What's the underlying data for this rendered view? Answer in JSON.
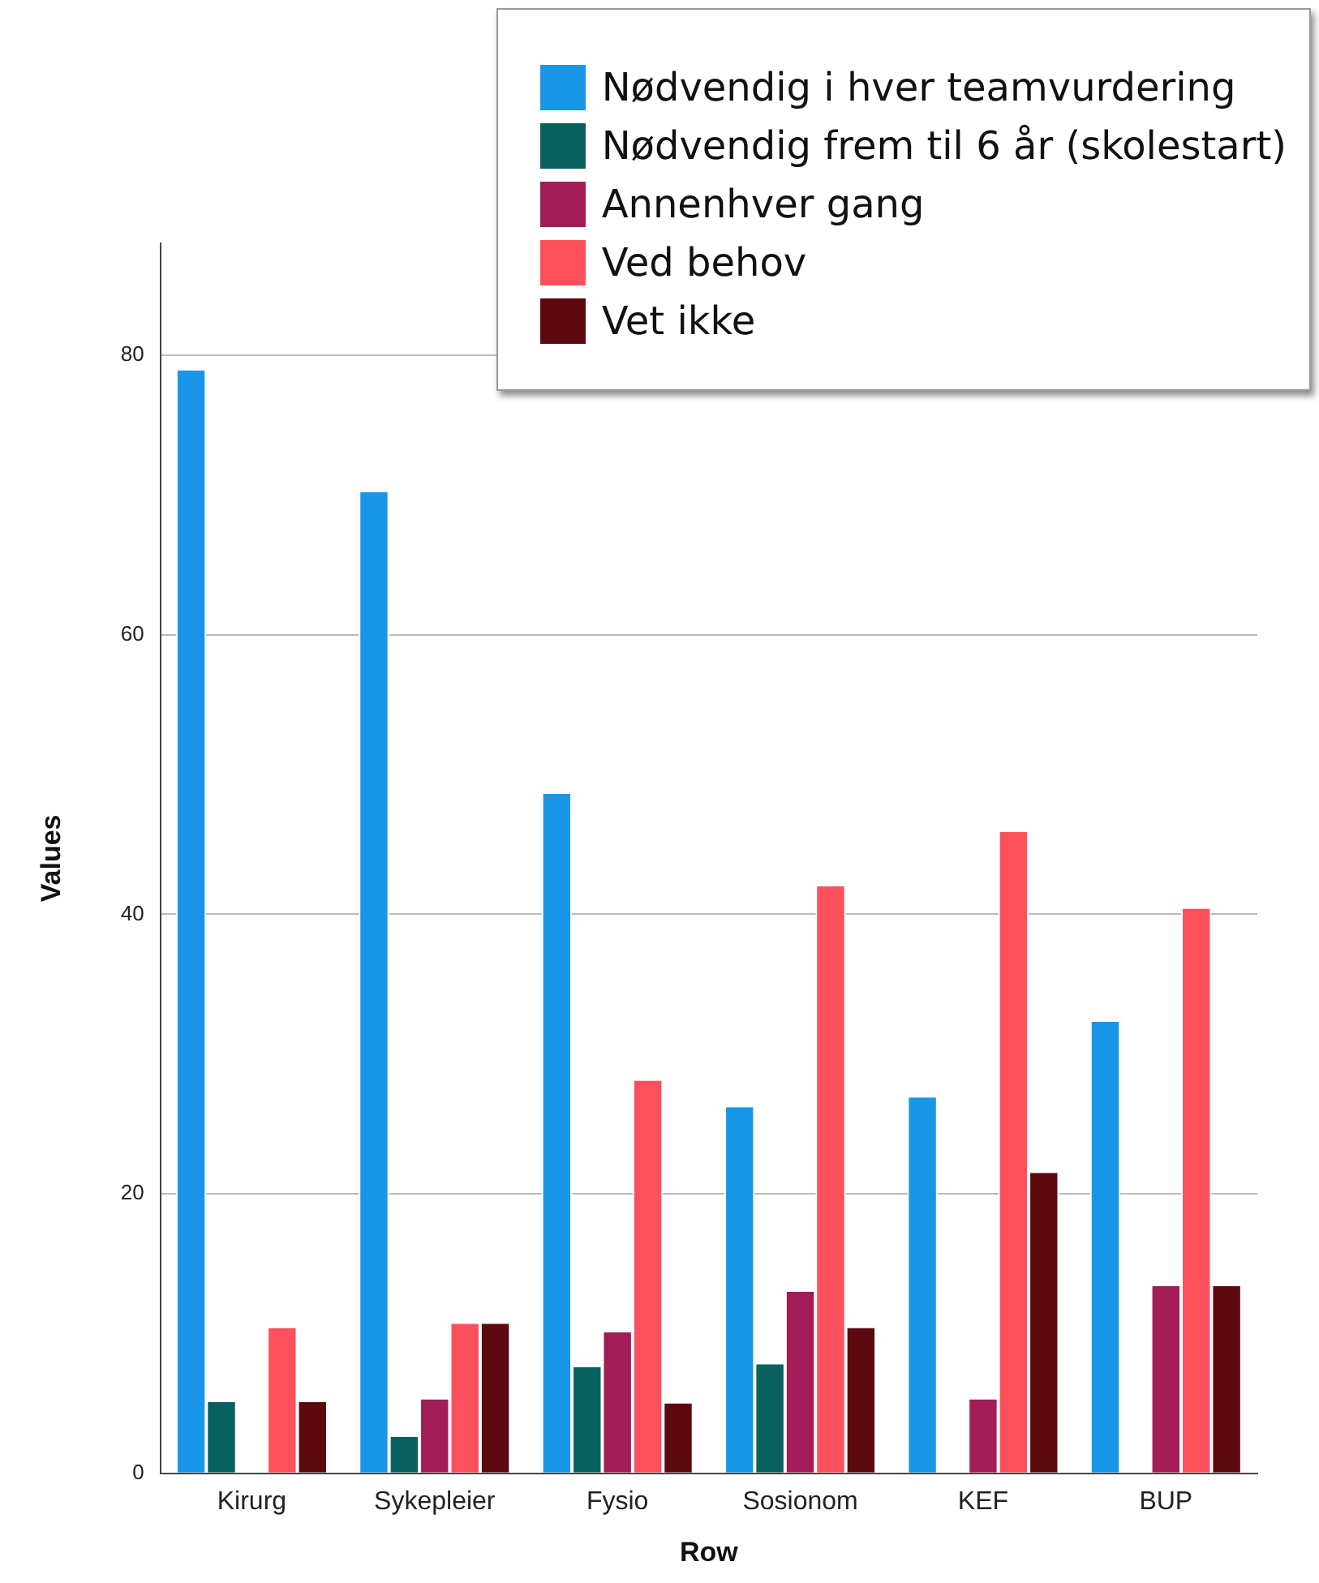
{
  "chart_data": {
    "type": "bar",
    "xlabel": "Row",
    "ylabel": "Values",
    "categories": [
      "Kirurg",
      "Sykepleier",
      "Fysio",
      "Sosionom",
      "KEF",
      "BUP"
    ],
    "series": [
      {
        "name": "Nødvendig i hver teamvurdering",
        "color": "#1a96e8",
        "values": [
          78.9,
          70.2,
          48.6,
          26.2,
          26.9,
          32.3
        ]
      },
      {
        "name": "Nødvendig frem til 6 år (skolestart)",
        "color": "#08615f",
        "values": [
          5.1,
          2.6,
          7.6,
          7.8,
          0,
          0
        ]
      },
      {
        "name": "Annenhver gang",
        "color": "#a21c58",
        "values": [
          0,
          5.3,
          10.1,
          13.0,
          5.3,
          13.4
        ]
      },
      {
        "name": "Ved behov",
        "color": "#fc515d",
        "values": [
          10.4,
          10.7,
          28.1,
          42.0,
          45.9,
          40.4
        ]
      },
      {
        "name": "Vet ikke",
        "color": "#5c0a10",
        "values": [
          5.1,
          10.7,
          5.0,
          10.4,
          21.5,
          13.4
        ]
      }
    ],
    "ylim": [
      0,
      88
    ],
    "yticks": [
      0,
      20,
      40,
      60,
      80
    ],
    "grid": "y",
    "legend": "top right"
  }
}
